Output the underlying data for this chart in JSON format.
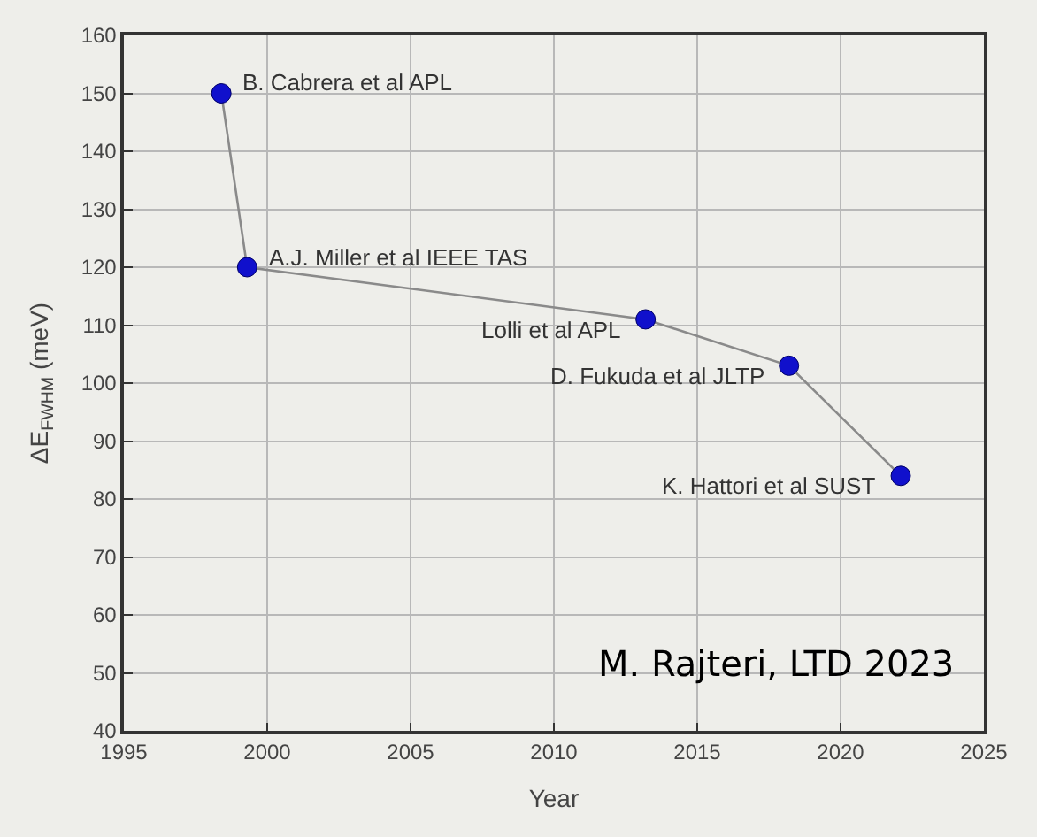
{
  "chart_data": {
    "type": "line",
    "xlabel": "Year",
    "ylabel": "ΔE$_{FWHM}$ (meV)",
    "x": [
      1998.4,
      1999.3,
      2013.2,
      2018.2,
      2022.1
    ],
    "series": [
      {
        "color": "#1010cc",
        "values": [
          150,
          120,
          111,
          103,
          84
        ]
      }
    ],
    "xlim": [
      1995,
      2025
    ],
    "xticks": [
      1995,
      2000,
      2005,
      2010,
      2015,
      2020,
      2025
    ],
    "ylim": [
      40,
      160
    ],
    "yticks": [
      40,
      50,
      60,
      70,
      80,
      90,
      100,
      110,
      120,
      130,
      140,
      150,
      160
    ],
    "grid": true,
    "marker": "circle",
    "line_style": "solid",
    "annotations": [
      {
        "text": "B. Cabrera et al APL",
        "x": 1998.4,
        "y": 150
      },
      {
        "text": "A.J. Miller et al IEEE TAS",
        "x": 1999.3,
        "y": 120
      },
      {
        "text": "Lolli et al APL",
        "x": 2013.2,
        "y": 111
      },
      {
        "text": "D. Fukuda et al JLTP",
        "x": 2018.2,
        "y": 103
      },
      {
        "text": "K. Hattori et al SUST",
        "x": 2022.1,
        "y": 84
      },
      "M. Rajteri, LTD 2023"
    ]
  }
}
